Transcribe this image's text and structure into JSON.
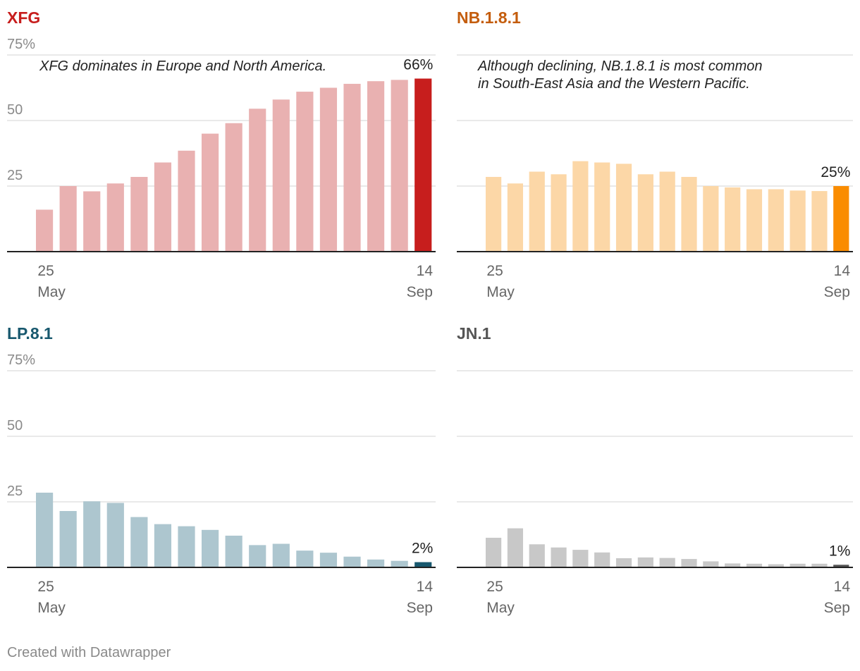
{
  "footer": "Created with Datawrapper",
  "x_axis": {
    "start": [
      "25",
      "May"
    ],
    "end": [
      "14",
      "Sep"
    ]
  },
  "y_axis": {
    "ticks": [
      {
        "value": 25,
        "label": "25"
      },
      {
        "value": 50,
        "label": "50"
      },
      {
        "value": 75,
        "label": "75%"
      }
    ]
  },
  "colors": {
    "gridline": "#e2e2e2",
    "baseline": "#222222",
    "tick_label": "#8a8a8a",
    "axis_label": "#666666",
    "value_label": "#222222",
    "annotation": "#222222"
  },
  "chart_data": [
    {
      "type": "bar",
      "title": "XFG",
      "title_color": "#c71e1d",
      "bar_color": "#e9b1b1",
      "highlight_color": "#c71e1d",
      "ylim": [
        0,
        75
      ],
      "show_y_labels": true,
      "x_start_label": "25 May",
      "x_end_label": "14 Sep",
      "values": [
        16,
        25,
        23,
        26,
        28.5,
        34,
        38.5,
        45,
        49,
        54.5,
        58,
        61,
        62.5,
        64,
        65,
        65.5,
        66
      ],
      "last_label": "66%",
      "annotation": [
        "XFG dominates in Europe and North America."
      ]
    },
    {
      "type": "bar",
      "title": "NB.1.8.1",
      "title_color": "#c45d0d",
      "bar_color": "#fcd7a7",
      "highlight_color": "#fa8c00",
      "ylim": [
        0,
        75
      ],
      "show_y_labels": false,
      "x_start_label": "25 May",
      "x_end_label": "14 Sep",
      "values": [
        28.5,
        26,
        30.5,
        29.5,
        34.5,
        34,
        33.5,
        29.5,
        30.5,
        28.5,
        25,
        24.5,
        23.8,
        23.8,
        23.3,
        23.1,
        25
      ],
      "last_label": "25%",
      "annotation": [
        "Although declining, NB.1.8.1 is most common",
        "in South-East Asia and the Western Pacific."
      ]
    },
    {
      "type": "bar",
      "title": "LP.8.1",
      "title_color": "#18586e",
      "bar_color": "#adc6cf",
      "highlight_color": "#18586e",
      "ylim": [
        0,
        75
      ],
      "show_y_labels": true,
      "x_start_label": "25 May",
      "x_end_label": "14 Sep",
      "values": [
        28.5,
        21.5,
        25.2,
        24.6,
        19.2,
        16.5,
        15.7,
        14.3,
        12.1,
        8.5,
        9,
        6.4,
        5.6,
        4.1,
        3,
        2.5,
        2
      ],
      "last_label": "2%",
      "annotation": []
    },
    {
      "type": "bar",
      "title": "JN.1",
      "title_color": "#555555",
      "bar_color": "#c8c8c8",
      "highlight_color": "#555555",
      "ylim": [
        0,
        75
      ],
      "show_y_labels": false,
      "x_start_label": "25 May",
      "x_end_label": "14 Sep",
      "values": [
        11.3,
        14.9,
        8.8,
        7.6,
        6.7,
        5.7,
        3.5,
        3.8,
        3.6,
        3.2,
        2.3,
        1.5,
        1.4,
        1.2,
        1.4,
        1.4,
        1
      ],
      "last_label": "1%",
      "annotation": []
    }
  ]
}
